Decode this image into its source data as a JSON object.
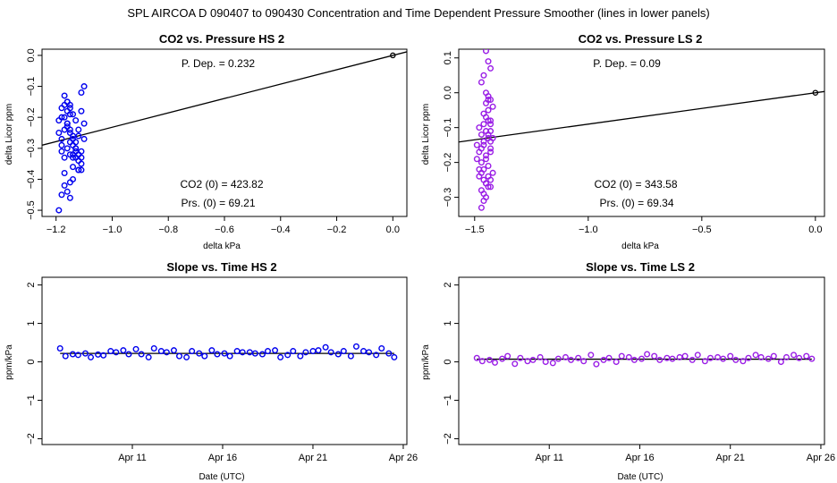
{
  "suptitle": "SPL   AIRCOA D   090407 to 090430   Concentration and Time Dependent Pressure Smoother (lines in lower panels)",
  "chart_data": [
    {
      "id": "hs-pressure",
      "type": "scatter",
      "title": "CO2 vs. Pressure HS 2",
      "xlabel": "delta kPa",
      "ylabel": "delta Licor ppm",
      "xlim": [
        -1.25,
        0.05
      ],
      "ylim": [
        -0.52,
        0.02
      ],
      "xticks": [
        -1.2,
        -1.0,
        -0.8,
        -0.6,
        -0.4,
        -0.2,
        0.0
      ],
      "xtick_labels": [
        "−1.2",
        "−1.0",
        "−0.8",
        "−0.6",
        "−0.4",
        "−0.2",
        "0.0"
      ],
      "yticks": [
        0,
        -0.1,
        -0.2,
        -0.3,
        -0.4,
        -0.5
      ],
      "ytick_labels": [
        "0.0",
        "−0.1",
        "−0.2",
        "−0.3",
        "−0.4",
        "−0.5"
      ],
      "color": "#0000ee",
      "annotations": {
        "pdep": "P. Dep. =  0.232",
        "co2": "CO2 (0) =  423.82",
        "prs": "Prs. (0) =  69.21"
      },
      "fit_line": {
        "slope": 0.232,
        "intercept": 0.0
      },
      "origin_point": [
        0.0,
        0.0
      ],
      "x": [
        -1.19,
        -1.18,
        -1.17,
        -1.17,
        -1.16,
        -1.16,
        -1.16,
        -1.15,
        -1.15,
        -1.15,
        -1.14,
        -1.14,
        -1.13,
        -1.12,
        -1.11,
        -1.11,
        -1.1,
        -1.1,
        -1.19,
        -1.18,
        -1.17,
        -1.16,
        -1.15,
        -1.14,
        -1.14,
        -1.13,
        -1.12,
        -1.11,
        -1.18,
        -1.17,
        -1.16,
        -1.15,
        -1.15,
        -1.14,
        -1.13,
        -1.12,
        -1.11,
        -1.19,
        -1.18,
        -1.17,
        -1.16,
        -1.15,
        -1.14,
        -1.13,
        -1.12,
        -1.11,
        -1.1,
        -1.18,
        -1.17,
        -1.16,
        -1.15,
        -1.14,
        -1.13,
        -1.12,
        -1.11,
        -1.18,
        -1.17,
        -1.16,
        -1.15,
        -1.14,
        -1.13,
        -1.12
      ],
      "y": [
        -0.21,
        -0.17,
        -0.16,
        -0.2,
        -0.15,
        -0.18,
        -0.23,
        -0.16,
        -0.19,
        -0.24,
        -0.26,
        -0.27,
        -0.3,
        -0.24,
        -0.18,
        -0.12,
        -0.1,
        -0.22,
        -0.25,
        -0.31,
        -0.33,
        -0.3,
        -0.28,
        -0.32,
        -0.36,
        -0.3,
        -0.37,
        -0.35,
        -0.27,
        -0.38,
        -0.44,
        -0.46,
        -0.41,
        -0.33,
        -0.31,
        -0.34,
        -0.37,
        -0.5,
        -0.45,
        -0.42,
        -0.22,
        -0.25,
        -0.29,
        -0.21,
        -0.32,
        -0.31,
        -0.27,
        -0.2,
        -0.13,
        -0.15,
        -0.17,
        -0.19,
        -0.28,
        -0.26,
        -0.33,
        -0.29,
        -0.24,
        -0.22,
        -0.32,
        -0.4,
        -0.33,
        -0.37
      ]
    },
    {
      "id": "ls-pressure",
      "type": "scatter",
      "title": "CO2 vs. Pressure LS 2",
      "xlabel": "delta kPa",
      "ylabel": "delta Licor ppm",
      "xlim": [
        -1.57,
        0.04
      ],
      "ylim": [
        -0.355,
        0.125
      ],
      "xticks": [
        -1.5,
        -1.0,
        -0.5,
        0.0
      ],
      "xtick_labels": [
        "−1.5",
        "−1.0",
        "−0.5",
        "0.0"
      ],
      "yticks": [
        0.1,
        0,
        -0.1,
        -0.2,
        -0.3
      ],
      "ytick_labels": [
        "0.1",
        "0.0",
        "−0.1",
        "−0.2",
        "−0.3"
      ],
      "color": "#9a1ee6",
      "annotations": {
        "pdep": "P. Dep. =  0.09",
        "co2": "CO2 (0) =  343.58",
        "prs": "Prs. (0) =  69.34"
      },
      "fit_line": {
        "slope": 0.09,
        "intercept": 0.0
      },
      "origin_point": [
        0.0,
        0.0
      ],
      "x": [
        -1.45,
        -1.44,
        -1.43,
        -1.46,
        -1.47,
        -1.45,
        -1.44,
        -1.43,
        -1.42,
        -1.46,
        -1.45,
        -1.44,
        -1.43,
        -1.48,
        -1.47,
        -1.46,
        -1.45,
        -1.44,
        -1.43,
        -1.49,
        -1.48,
        -1.47,
        -1.46,
        -1.45,
        -1.44,
        -1.43,
        -1.42,
        -1.47,
        -1.46,
        -1.45,
        -1.44,
        -1.43,
        -1.48,
        -1.47,
        -1.46,
        -1.45,
        -1.44,
        -1.43,
        -1.42,
        -1.47,
        -1.46,
        -1.45,
        -1.44,
        -1.43,
        -1.49,
        -1.48,
        -1.47,
        -1.46,
        -1.45,
        -1.44,
        -1.43,
        -1.46,
        -1.45,
        -1.44,
        -1.43
      ],
      "y": [
        0.12,
        0.09,
        0.07,
        0.05,
        0.03,
        0.0,
        -0.01,
        -0.02,
        -0.04,
        -0.06,
        -0.03,
        -0.05,
        -0.08,
        -0.1,
        -0.12,
        -0.09,
        -0.11,
        -0.13,
        -0.14,
        -0.15,
        -0.17,
        -0.16,
        -0.14,
        -0.18,
        -0.12,
        -0.16,
        -0.13,
        -0.2,
        -0.22,
        -0.19,
        -0.21,
        -0.17,
        -0.24,
        -0.23,
        -0.25,
        -0.26,
        -0.24,
        -0.27,
        -0.23,
        -0.28,
        -0.29,
        -0.3,
        -0.27,
        -0.25,
        -0.19,
        -0.22,
        -0.33,
        -0.31,
        -0.07,
        -0.02,
        -0.09,
        -0.15,
        -0.26,
        -0.08,
        -0.11
      ]
    },
    {
      "id": "hs-time",
      "type": "scatter",
      "title": "Slope vs. Time HS 2",
      "xlabel": "Date (UTC)",
      "ylabel": "ppm/kPa",
      "xlim": [
        6.0,
        26.2
      ],
      "ylim": [
        -2.15,
        2.2
      ],
      "xticks": [
        11,
        16,
        21,
        26
      ],
      "xtick_labels": [
        "Apr 11",
        "Apr 16",
        "Apr 21",
        "Apr 26"
      ],
      "yticks": [
        -2,
        -1,
        0,
        1,
        2
      ],
      "ytick_labels": [
        "−2",
        "−1",
        "0",
        "1",
        "2"
      ],
      "color": "#0000ee",
      "smoother_y": 0.22,
      "x": [
        7.0,
        7.3,
        7.7,
        8.0,
        8.4,
        8.7,
        9.1,
        9.4,
        9.8,
        10.1,
        10.5,
        10.8,
        11.2,
        11.5,
        11.9,
        12.2,
        12.6,
        12.9,
        13.3,
        13.6,
        14.0,
        14.3,
        14.7,
        15.0,
        15.4,
        15.7,
        16.1,
        16.4,
        16.8,
        17.1,
        17.5,
        17.8,
        18.2,
        18.5,
        18.9,
        19.2,
        19.6,
        19.9,
        20.3,
        20.6,
        21.0,
        21.3,
        21.7,
        22.0,
        22.4,
        22.7,
        23.1,
        23.4,
        23.8,
        24.1,
        24.5,
        24.8,
        25.2,
        25.5
      ],
      "y": [
        0.35,
        0.15,
        0.2,
        0.18,
        0.22,
        0.12,
        0.19,
        0.17,
        0.28,
        0.25,
        0.3,
        0.2,
        0.33,
        0.2,
        0.12,
        0.35,
        0.28,
        0.25,
        0.3,
        0.15,
        0.12,
        0.28,
        0.22,
        0.15,
        0.3,
        0.2,
        0.22,
        0.15,
        0.28,
        0.25,
        0.25,
        0.22,
        0.2,
        0.28,
        0.3,
        0.12,
        0.18,
        0.28,
        0.15,
        0.25,
        0.28,
        0.3,
        0.38,
        0.25,
        0.2,
        0.28,
        0.15,
        0.4,
        0.28,
        0.25,
        0.18,
        0.35,
        0.22,
        0.12
      ]
    },
    {
      "id": "ls-time",
      "type": "scatter",
      "title": "Slope vs. Time LS 2",
      "xlabel": "Date (UTC)",
      "ylabel": "ppm/kPa",
      "xlim": [
        6.0,
        26.2
      ],
      "ylim": [
        -2.15,
        2.2
      ],
      "xticks": [
        11,
        16,
        21,
        26
      ],
      "xtick_labels": [
        "Apr 11",
        "Apr 16",
        "Apr 21",
        "Apr 26"
      ],
      "yticks": [
        -2,
        -1,
        0,
        1,
        2
      ],
      "ytick_labels": [
        "−2",
        "−1",
        "0",
        "1",
        "2"
      ],
      "color": "#9a1ee6",
      "smoother_y": 0.07,
      "x": [
        7.0,
        7.3,
        7.7,
        8.0,
        8.4,
        8.7,
        9.1,
        9.4,
        9.8,
        10.1,
        10.5,
        10.8,
        11.2,
        11.5,
        11.9,
        12.2,
        12.6,
        12.9,
        13.3,
        13.6,
        14.0,
        14.3,
        14.7,
        15.0,
        15.4,
        15.7,
        16.1,
        16.4,
        16.8,
        17.1,
        17.5,
        17.8,
        18.2,
        18.5,
        18.9,
        19.2,
        19.6,
        19.9,
        20.3,
        20.6,
        21.0,
        21.3,
        21.7,
        22.0,
        22.4,
        22.7,
        23.1,
        23.4,
        23.8,
        24.1,
        24.5,
        24.8,
        25.2,
        25.5
      ],
      "y": [
        0.1,
        0.02,
        0.05,
        -0.02,
        0.08,
        0.15,
        -0.05,
        0.1,
        0.02,
        0.05,
        0.12,
        0.0,
        -0.03,
        0.08,
        0.12,
        0.05,
        0.1,
        0.02,
        0.18,
        -0.06,
        0.05,
        0.1,
        0.0,
        0.15,
        0.12,
        0.05,
        0.08,
        0.2,
        0.15,
        0.05,
        0.1,
        0.08,
        0.12,
        0.15,
        0.05,
        0.18,
        0.02,
        0.1,
        0.12,
        0.08,
        0.15,
        0.05,
        0.02,
        0.1,
        0.18,
        0.12,
        0.08,
        0.15,
        0.0,
        0.12,
        0.18,
        0.1,
        0.15,
        0.08
      ]
    }
  ]
}
